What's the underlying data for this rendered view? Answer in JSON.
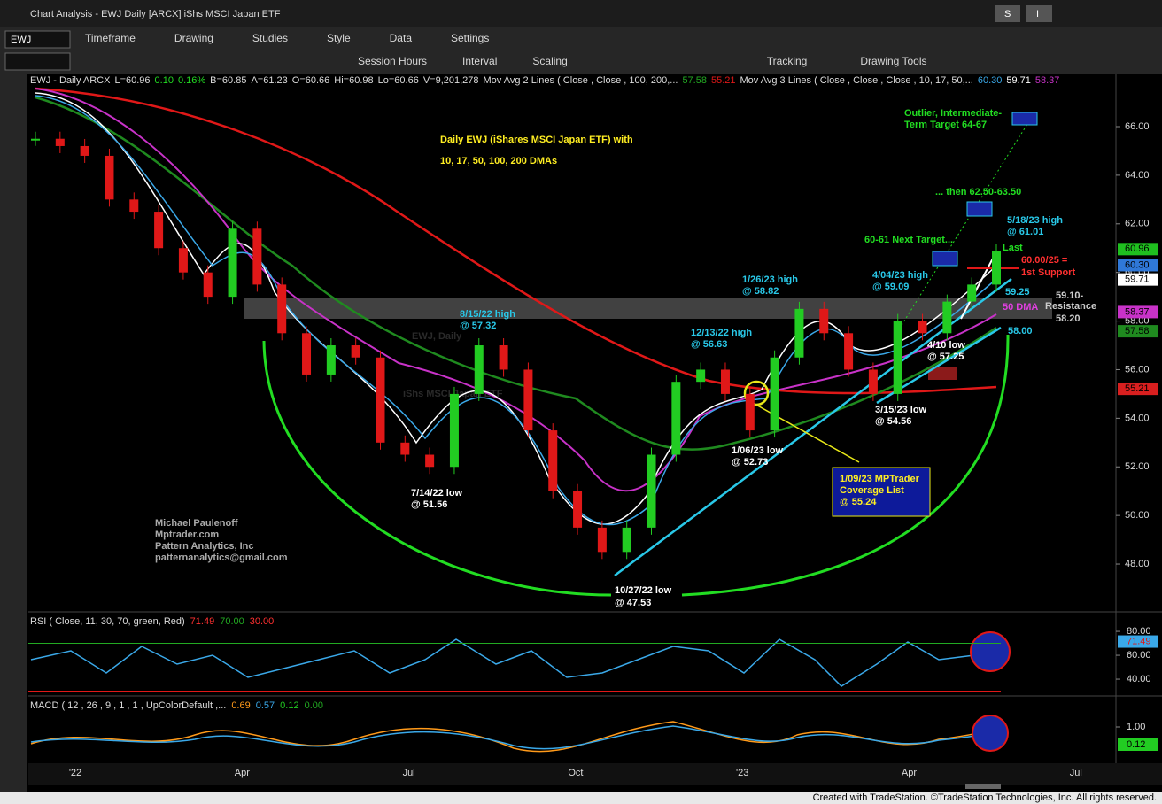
{
  "window": {
    "title": "Chart Analysis - EWJ Daily [ARCX] iShs MSCI Japan ETF",
    "buttons": [
      "S",
      "I"
    ]
  },
  "toolbar1": {
    "symbol": "EWJ",
    "items": [
      "Timeframe",
      "Drawing",
      "Studies",
      "Style",
      "Data",
      "Settings"
    ]
  },
  "toolbar2": {
    "items": [
      "Session Hours",
      "Interval",
      "Scaling",
      "Tracking",
      "Drawing Tools"
    ]
  },
  "price_panel": {
    "header": [
      "EWJ - Daily  ARCX",
      "L=60.96",
      "0.10",
      "0.16%",
      "B=60.85",
      "A=61.23",
      "O=60.66",
      "Hi=60.98",
      "Lo=60.66",
      "V=9,201,278",
      "Mov Avg 2 Lines (     Close ,     Close ,  100,  200,...",
      "57.58",
      "55.21",
      "Mov Avg 3 Lines ( Close , Close , Close , 10, 17, 50,...",
      "60.30",
      "59.71",
      "58.37"
    ],
    "title": [
      "Daily EWJ (iShares MSCI Japan ETF) with",
      "10, 17, 50, 100, 200 DMAs"
    ],
    "watermark": [
      "EWJ, Daily",
      "iShs MSCI Japan ETF"
    ],
    "credits": [
      "Michael Paulenoff",
      "Mptrader.com",
      "Pattern Analytics, Inc",
      "patternanalytics@gmail.com"
    ],
    "annotations": [
      "Outlier, Intermediate-",
      "Term Target 64-67",
      "... then 62.50-63.50",
      "5/18/23 high",
      "@ 61.01",
      "60-61 Next Target...",
      "Last",
      "60.00/25 =",
      "1st Support",
      "4/04/23 high",
      "@ 59.09",
      "1/26/23 high",
      "@ 58.82",
      "59.25",
      "59.10-",
      "Resistance",
      "58.20",
      "50 DMA",
      "8/15/22 high",
      "@ 57.32",
      "12/13/22 high",
      "@ 56.63",
      "4/10 low",
      "@ 57.25",
      "58.00",
      "3/15/23 low",
      "@ 54.56",
      "1/06/23 low",
      "@ 52.73",
      "1/09/23 MPTrader",
      "Coverage List",
      "@ 55.24",
      "7/14/22 low",
      "@ 51.56",
      "10/27/22 low",
      "@ 47.53"
    ],
    "ylim": [
      46.07,
      68.15
    ],
    "yticks": [
      {
        "value": 48,
        "label": "48.00"
      },
      {
        "value": 50,
        "label": "50.00"
      },
      {
        "value": 52,
        "label": "52.00"
      },
      {
        "value": 54,
        "label": "54.00"
      },
      {
        "value": 56,
        "label": "56.00"
      },
      {
        "value": 58,
        "label": "58.00"
      },
      {
        "value": 60,
        "label": "60.00"
      },
      {
        "value": 62,
        "label": "62.00"
      },
      {
        "value": 64,
        "label": "64.00"
      },
      {
        "value": 66,
        "label": "66.00"
      }
    ],
    "tags": [
      {
        "value": 60.96,
        "label": "60.96",
        "color": "#1fbf1f"
      },
      {
        "value": 60.3,
        "label": "60.30",
        "color": "#2f78d8"
      },
      {
        "value": 59.71,
        "label": "59.71",
        "color": "#ffffff"
      },
      {
        "value": 58.37,
        "label": "58.37",
        "color": "#c832c8"
      },
      {
        "value": 57.58,
        "label": "57.58",
        "color": "#1f8a1f"
      },
      {
        "value": 55.21,
        "label": "55.21",
        "color": "#d81f1f"
      }
    ],
    "closes": [
      65.5,
      65.2,
      64.8,
      63.0,
      62.5,
      61.0,
      60.0,
      59.0,
      61.8,
      59.5,
      57.5,
      55.8,
      57.0,
      56.5,
      53.0,
      52.5,
      52.0,
      55.0,
      57.0,
      56.0,
      53.5,
      51.0,
      49.5,
      48.5,
      49.5,
      52.5,
      55.5,
      56.0,
      55.0,
      53.5,
      56.5,
      58.5,
      57.5,
      56.0,
      55.0,
      58.0,
      57.5,
      58.8,
      59.5,
      60.9
    ]
  },
  "rsi_panel": {
    "header": [
      "RSI ( Close, 11, 30, 70, green, Red)",
      "71.49",
      "70.00",
      "30.00"
    ],
    "ylim": [
      26.7,
      95.6
    ],
    "yticks": [
      {
        "value": 80,
        "label": "80.00"
      },
      {
        "value": 60,
        "label": "60.00"
      },
      {
        "value": 40,
        "label": "40.00"
      }
    ],
    "tag": {
      "value": 71.49,
      "label": "71.49"
    }
  },
  "macd_panel": {
    "header": [
      "MACD ( 12 , 26 , 9 , 1 , 1 , UpColorDefault ,...",
      "0.69",
      "0.57",
      "0.12",
      "0.00"
    ],
    "yticks": [
      {
        "value": 1,
        "label": "1.00"
      }
    ],
    "tag": {
      "value": 0.12,
      "label": "0.12"
    }
  },
  "date_axis": [
    "'22",
    "Apr",
    "Jul",
    "Oct",
    "'23",
    "Apr",
    "Jul"
  ],
  "footer": "Created with TradeStation. ©TradeStation Technologies, Inc. All rights reserved."
}
